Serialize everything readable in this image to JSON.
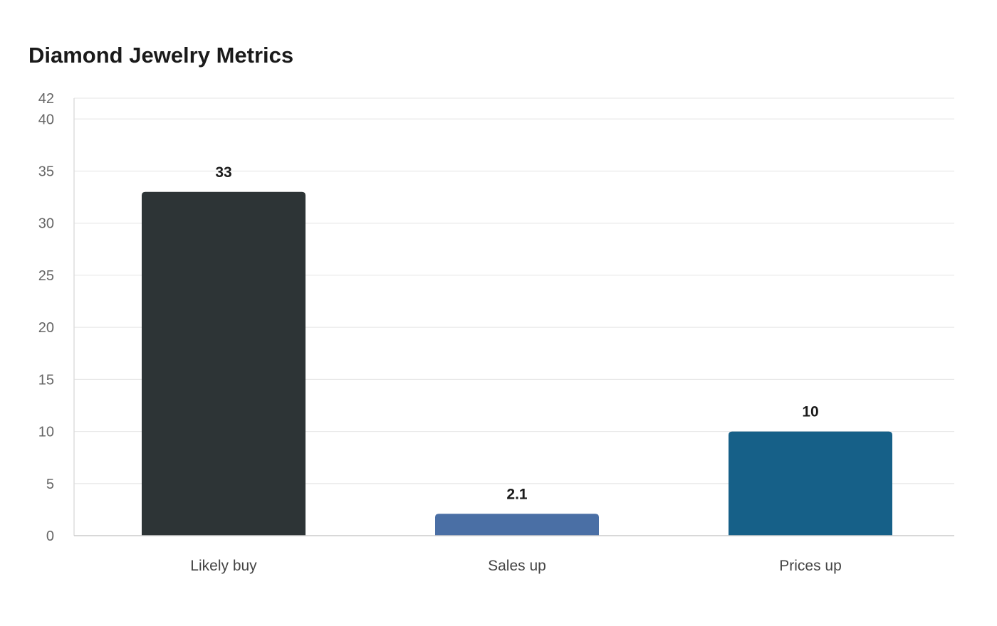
{
  "chart_data": {
    "type": "bar",
    "title": "Diamond Jewelry Metrics",
    "xlabel": "",
    "ylabel": "",
    "categories": [
      "Likely buy",
      "Sales up",
      "Prices up"
    ],
    "values": [
      33,
      2.1,
      10
    ],
    "data_labels": [
      "33",
      "2.1",
      "10"
    ],
    "colors": [
      "#2d3436",
      "#4a6fa5",
      "#166088"
    ],
    "ylim": [
      0,
      42
    ],
    "yticks": [
      0,
      5,
      10,
      15,
      20,
      25,
      30,
      35,
      40,
      42
    ],
    "grid": true,
    "legend": "none"
  }
}
